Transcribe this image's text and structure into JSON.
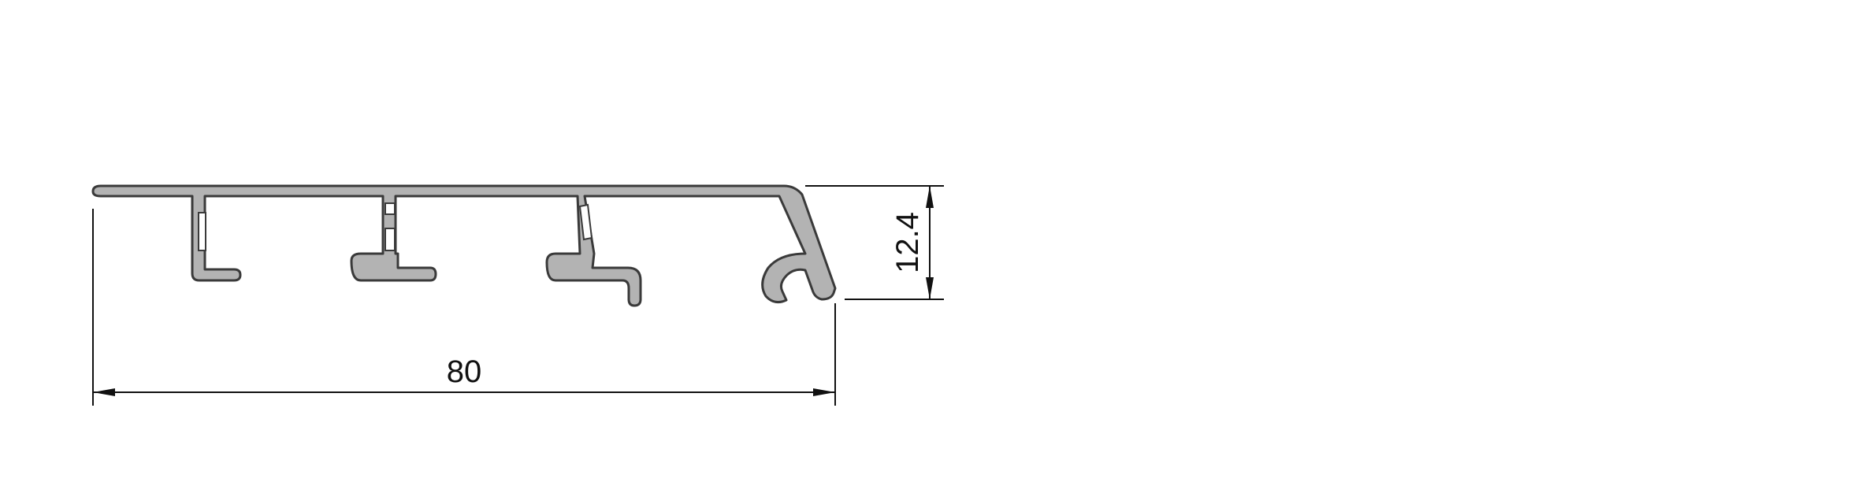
{
  "drawing": {
    "width_dimension": "80",
    "height_dimension": "12.4",
    "colors": {
      "profile_fill": "#b3b3b3",
      "profile_stroke": "#3a3a3a",
      "dimension_line": "#111111",
      "background": "#ffffff"
    }
  }
}
